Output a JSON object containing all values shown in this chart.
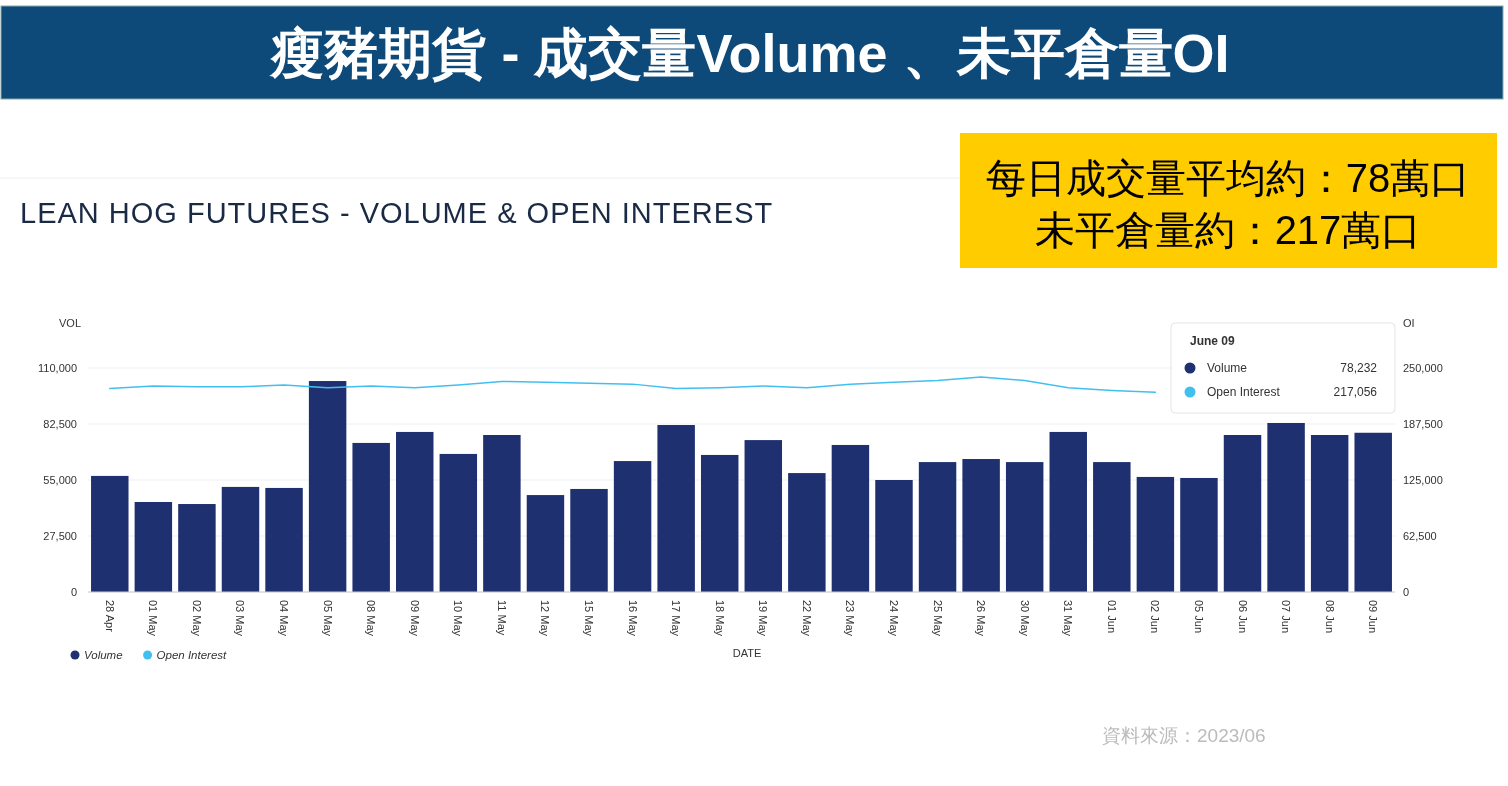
{
  "chart_data": {
    "type": "bar",
    "title": "瘦豬期貨 - 成交量Volume 、未平倉量OI",
    "subtitle": "LEAN HOG FUTURES - VOLUME & OPEN INTEREST",
    "xlabel": "DATE",
    "ylabel": "VOL",
    "y2label": "OI",
    "categories": [
      "28 Apr",
      "01 May",
      "02 May",
      "03 May",
      "04 May",
      "05 May",
      "08 May",
      "09 May",
      "10 May",
      "11 May",
      "12 May",
      "15 May",
      "16 May",
      "17 May",
      "18 May",
      "19 May",
      "22 May",
      "23 May",
      "24 May",
      "25 May",
      "26 May",
      "30 May",
      "31 May",
      "01 Jun",
      "02 Jun",
      "05 Jun",
      "06 Jun",
      "07 Jun",
      "08 Jun",
      "09 Jun"
    ],
    "series": [
      {
        "name": "Volume",
        "color": "#1f3070",
        "values": [
          57000,
          44200,
          43200,
          51600,
          51100,
          103600,
          73200,
          78600,
          67800,
          77100,
          47600,
          50600,
          64300,
          82000,
          67300,
          74600,
          58400,
          72200,
          55000,
          63800,
          65300,
          63800,
          78600,
          63800,
          56500,
          56000,
          77100,
          83000,
          77100,
          78200
        ]
      },
      {
        "name": "Open Interest",
        "type": "line",
        "axis": "y2",
        "color": "#41c0f0",
        "values": [
          227000,
          230000,
          229000,
          229000,
          231000,
          228000,
          230000,
          228000,
          231000,
          235000,
          234000,
          233000,
          232000,
          227000,
          228000,
          230000,
          228000,
          232000,
          234000,
          236000,
          240000,
          236000,
          228000,
          225000,
          223000,
          null,
          null,
          null,
          null,
          null
        ]
      }
    ],
    "ylim": [
      0,
      110000
    ],
    "yticks": [
      0,
      {
        "value": 27500,
        "label": "27,500"
      },
      {
        "value": 55000,
        "label": "55,000"
      },
      {
        "value": 82500,
        "label": "82,500"
      },
      {
        "value": 110000,
        "label": "110,000"
      }
    ],
    "y2lim": [
      0,
      250000
    ],
    "y2ticks": [
      0,
      {
        "value": 62500,
        "label": "62,500"
      },
      {
        "value": 125000,
        "label": "125,000"
      },
      {
        "value": 187500,
        "label": "187,500"
      },
      {
        "value": 250000,
        "label": "250,000"
      }
    ],
    "grid": "y",
    "legend": "bottom left",
    "annotations": [
      "每日成交量平均約：78萬口",
      "未平倉量約：217萬口",
      "資料來源：2023/06",
      "June 09",
      "Volume",
      "78,232",
      "Open Interest",
      "217,056"
    ]
  }
}
